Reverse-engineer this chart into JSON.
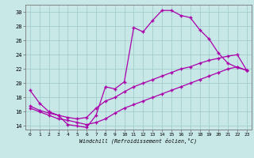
{
  "xlabel": "Windchill (Refroidissement éolien,°C)",
  "background_color": "#c8e8e8",
  "line_color": "#aa00aa",
  "xlim": [
    -0.5,
    23.5
  ],
  "ylim": [
    13.5,
    31
  ],
  "xticks": [
    0,
    1,
    2,
    3,
    4,
    5,
    6,
    7,
    8,
    9,
    10,
    11,
    12,
    13,
    14,
    15,
    16,
    17,
    18,
    19,
    20,
    21,
    22,
    23
  ],
  "yticks": [
    14,
    16,
    18,
    20,
    22,
    24,
    26,
    28,
    30
  ],
  "line1_x": [
    0,
    1,
    2,
    3,
    4,
    5,
    6,
    7,
    8,
    9,
    10,
    11,
    12,
    13,
    14,
    15,
    16,
    17,
    18,
    19,
    20,
    21,
    22,
    23
  ],
  "line1_y": [
    19.0,
    17.2,
    16.0,
    15.5,
    14.2,
    14.0,
    13.8,
    15.5,
    19.5,
    19.2,
    20.2,
    27.8,
    27.2,
    28.8,
    30.2,
    30.2,
    29.5,
    29.2,
    27.5,
    26.2,
    24.2,
    22.8,
    22.2,
    21.8
  ],
  "line2_x": [
    0,
    1,
    2,
    3,
    4,
    5,
    6,
    7,
    8,
    9,
    10,
    11,
    12,
    13,
    14,
    15,
    16,
    17,
    18,
    19,
    20,
    21,
    22,
    23
  ],
  "line2_y": [
    16.8,
    16.2,
    15.8,
    15.5,
    15.2,
    15.0,
    15.2,
    16.5,
    17.5,
    18.0,
    18.8,
    19.5,
    20.0,
    20.5,
    21.0,
    21.5,
    22.0,
    22.3,
    22.8,
    23.2,
    23.5,
    23.8,
    24.0,
    21.8
  ],
  "line3_x": [
    0,
    1,
    2,
    3,
    4,
    5,
    6,
    7,
    8,
    9,
    10,
    11,
    12,
    13,
    14,
    15,
    16,
    17,
    18,
    19,
    20,
    21,
    22,
    23
  ],
  "line3_y": [
    16.5,
    16.0,
    15.5,
    15.0,
    14.8,
    14.5,
    14.2,
    14.5,
    15.0,
    15.8,
    16.5,
    17.0,
    17.5,
    18.0,
    18.5,
    19.0,
    19.5,
    20.0,
    20.5,
    21.0,
    21.5,
    22.0,
    22.3,
    21.8
  ]
}
